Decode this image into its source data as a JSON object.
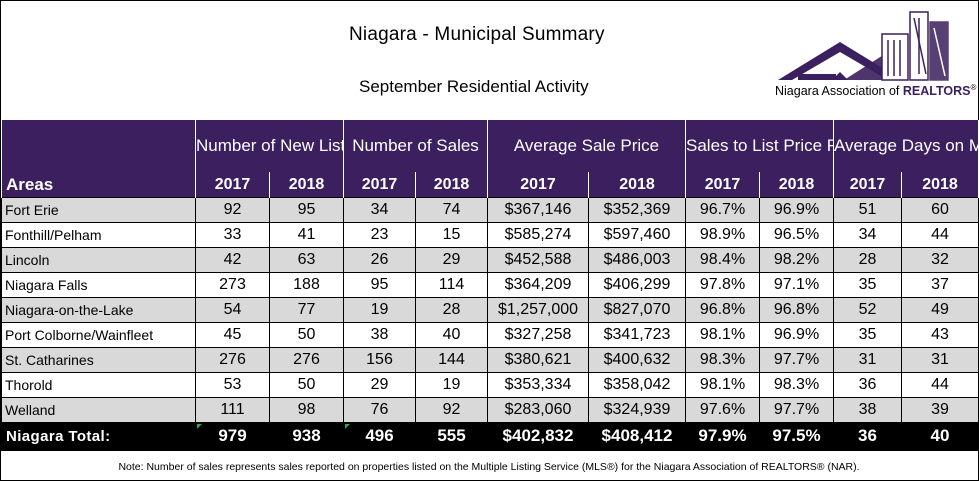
{
  "header": {
    "title": "Niagara - Municipal Summary",
    "subtitle": "September Residential Activity",
    "logo_text_prefix": "Niagara Association of ",
    "logo_text_brand": "REALTORS",
    "logo_text_reg": "®"
  },
  "table": {
    "groups": [
      "Number of New Listings",
      "Number of Sales",
      "Average Sale Price",
      "Sales to List Price Ratio",
      "Average Days on Market"
    ],
    "areas_label": "Areas",
    "years": [
      "2017",
      "2018"
    ],
    "rows": [
      {
        "area": "Fort Erie",
        "values": [
          "92",
          "95",
          "34",
          "74",
          "$367,146",
          "$352,369",
          "96.7%",
          "96.9%",
          "51",
          "60"
        ]
      },
      {
        "area": "Fonthill/Pelham",
        "values": [
          "33",
          "41",
          "23",
          "15",
          "$585,274",
          "$597,460",
          "98.9%",
          "96.5%",
          "34",
          "44"
        ]
      },
      {
        "area": "Lincoln",
        "values": [
          "42",
          "63",
          "26",
          "29",
          "$452,588",
          "$486,003",
          "98.4%",
          "98.2%",
          "28",
          "32"
        ]
      },
      {
        "area": "Niagara Falls",
        "values": [
          "273",
          "188",
          "95",
          "114",
          "$364,209",
          "$406,299",
          "97.8%",
          "97.1%",
          "35",
          "37"
        ]
      },
      {
        "area": "Niagara-on-the-Lake",
        "values": [
          "54",
          "77",
          "19",
          "28",
          "$1,257,000",
          "$827,070",
          "96.8%",
          "96.8%",
          "52",
          "49"
        ]
      },
      {
        "area": "Port Colborne/Wainfleet",
        "values": [
          "45",
          "50",
          "38",
          "40",
          "$327,258",
          "$341,723",
          "98.1%",
          "96.9%",
          "35",
          "43"
        ]
      },
      {
        "area": "St. Catharines",
        "values": [
          "276",
          "276",
          "156",
          "144",
          "$380,621",
          "$400,632",
          "98.3%",
          "97.7%",
          "31",
          "31"
        ]
      },
      {
        "area": "Thorold",
        "values": [
          "53",
          "50",
          "29",
          "19",
          "$353,334",
          "$358,042",
          "98.1%",
          "98.3%",
          "36",
          "44"
        ]
      },
      {
        "area": "Welland",
        "values": [
          "111",
          "98",
          "76",
          "92",
          "$283,060",
          "$324,939",
          "97.6%",
          "97.7%",
          "38",
          "39"
        ]
      }
    ],
    "total": {
      "label": "Niagara Total:",
      "values": [
        "979",
        "938",
        "496",
        "555",
        "$402,832",
        "$408,412",
        "97.9%",
        "97.5%",
        "36",
        "40"
      ]
    }
  },
  "footer": {
    "note": "Note: Number of sales represents sales reported on properties listed on the Multiple Listing Service (MLS®) for the Niagara Association of REALTORS® (NAR)."
  },
  "colors": {
    "header_purple": "#3b1f5e",
    "row_shade": "#d9d9d9",
    "total_bg": "#000000"
  }
}
